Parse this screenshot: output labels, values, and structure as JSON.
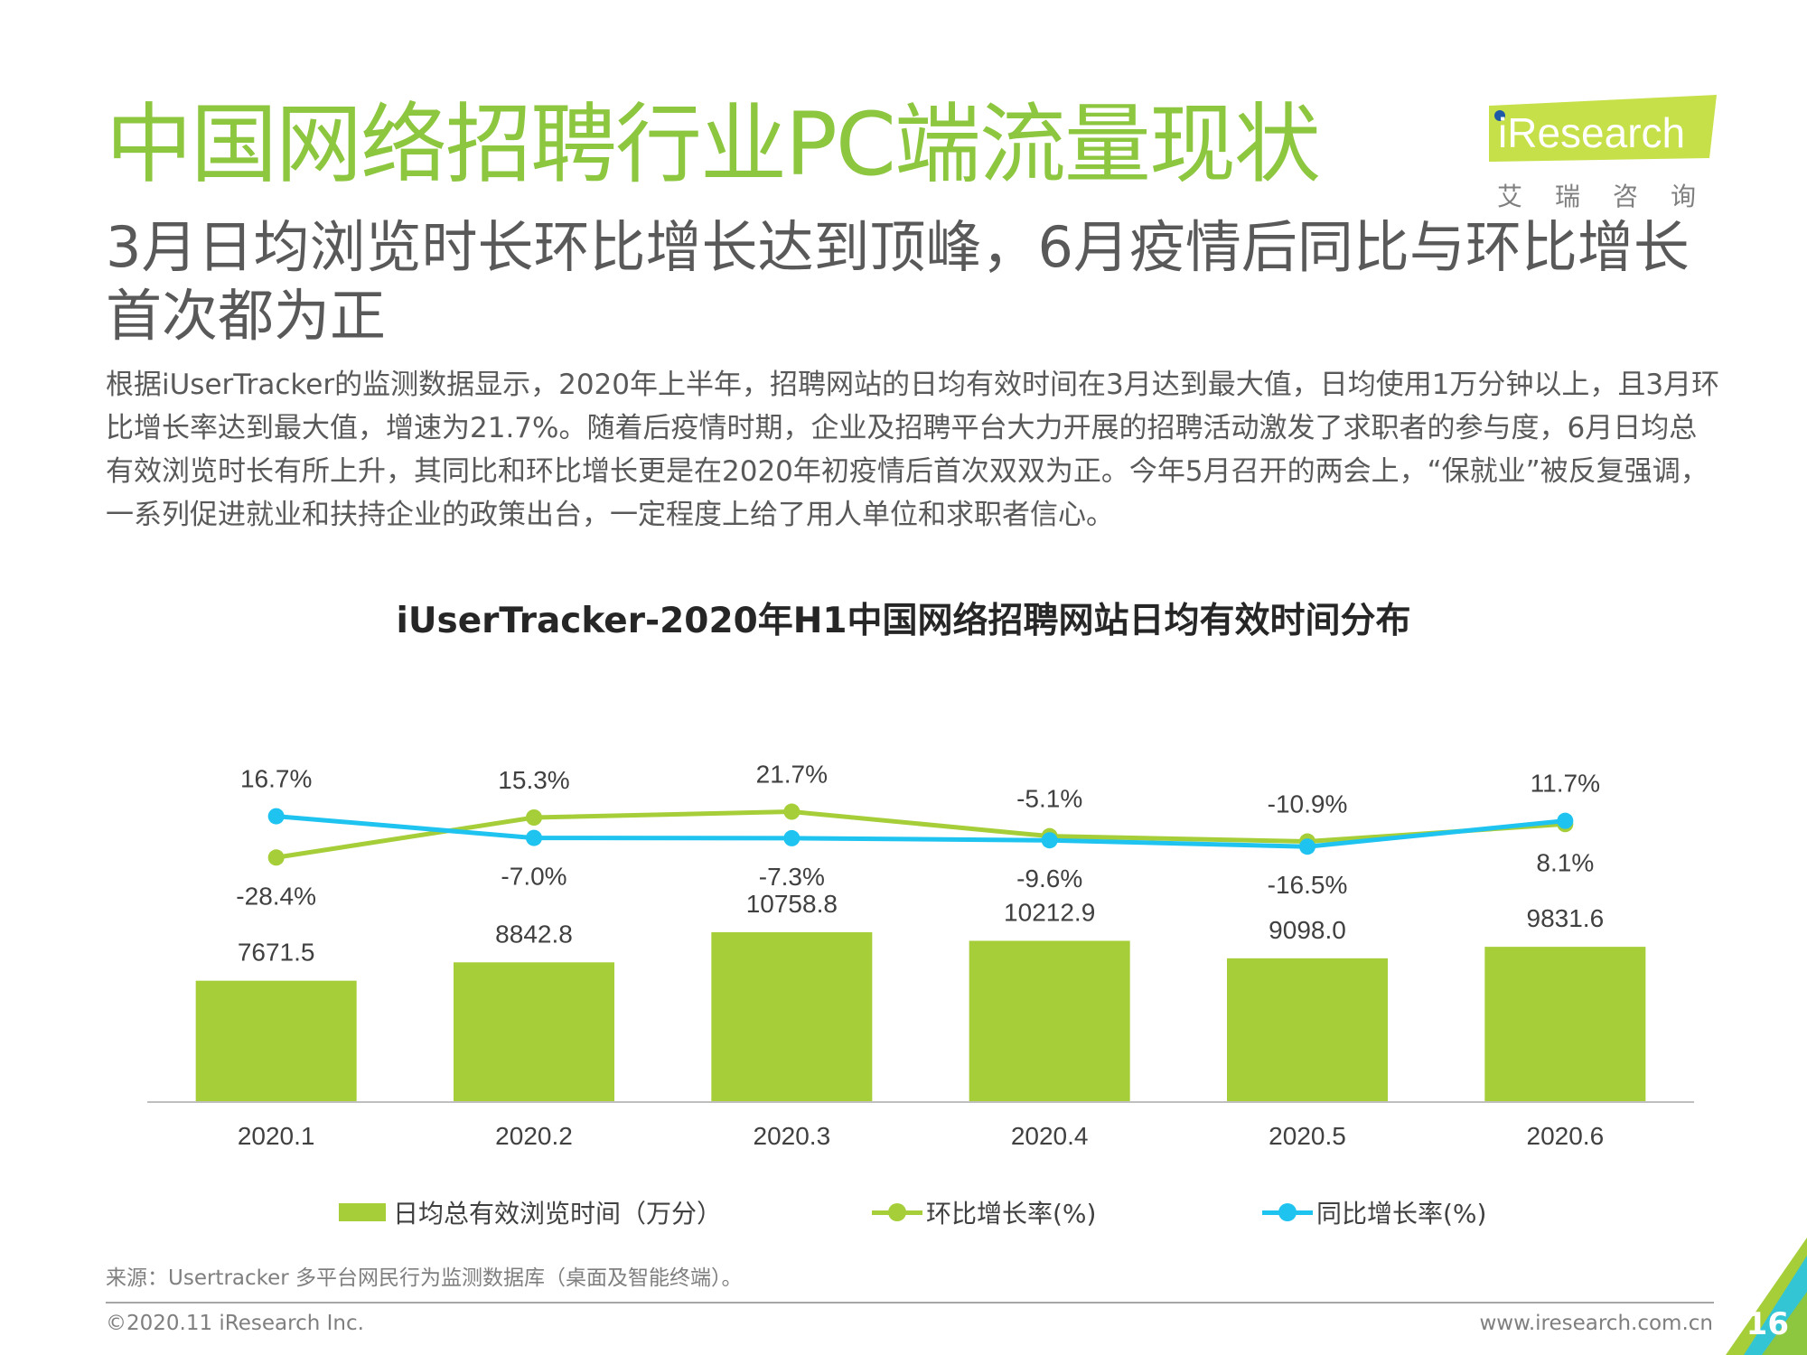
{
  "title": "中国网络招聘行业PC端流量现状",
  "subtitle": "3月日均浏览时长环比增长达到顶峰，6月疫情后同比与环比增长首次都为正",
  "body": "根据iUserTracker的监测数据显示，2020年上半年，招聘网站的日均有效时间在3月达到最大值，日均使用1万分钟以上，且3月环比增长率达到最大值，增速为21.7%。随着后疫情时期，企业及招聘平台大力开展的招聘活动激发了求职者的参与度，6月日均总有效浏览时长有所上升，其同比和环比增长更是在2020年初疫情后首次双双为正。今年5月召开的两会上，“保就业”被反复强调，一系列促进就业和扶持企业的政策出台，一定程度上给了用人单位和求职者信心。",
  "logo": {
    "text": "iResearch",
    "sub": "艾瑞咨询",
    "bg": "#c6e04a"
  },
  "chart_data": {
    "type": "bar",
    "title": "iUserTracker-2020年H1中国网络招聘网站日均有效时间分布",
    "categories": [
      "2020.1",
      "2020.2",
      "2020.3",
      "2020.4",
      "2020.5",
      "2020.6"
    ],
    "series": [
      {
        "name": "日均总有效浏览时间（万分）",
        "type": "bar",
        "color": "#a6ce39",
        "values": [
          7671.5,
          8842.8,
          10758.8,
          10212.9,
          9098.0,
          9831.6
        ],
        "labels": [
          "7671.5",
          "8842.8",
          "10758.8",
          "10212.9",
          "9098.0",
          "9831.6"
        ]
      },
      {
        "name": "环比增长率(%)",
        "type": "line",
        "color": "#a6ce39",
        "values": [
          -28.4,
          15.3,
          21.7,
          -5.1,
          -10.9,
          8.1
        ],
        "labels": [
          "-28.4%",
          "15.3%",
          "21.7%",
          "-5.1%",
          "-10.9%",
          "8.1%"
        ]
      },
      {
        "name": "同比增长率(%)",
        "type": "line",
        "color": "#1ec3f0",
        "values": [
          16.7,
          -7.0,
          -7.3,
          -9.6,
          -16.5,
          11.7
        ],
        "labels": [
          "16.7%",
          "-7.0%",
          "-7.3%",
          "-9.6%",
          "-16.5%",
          "11.7%"
        ]
      }
    ],
    "xlabel": "",
    "ylabel": "",
    "legend": "bottom",
    "grid": false
  },
  "source": "来源：Usertracker 多平台网民行为监测数据库（桌面及智能终端）。",
  "footer": {
    "copyright": "©2020.11 iResearch Inc.",
    "website": "www.iresearch.com.cn",
    "page": "16"
  }
}
